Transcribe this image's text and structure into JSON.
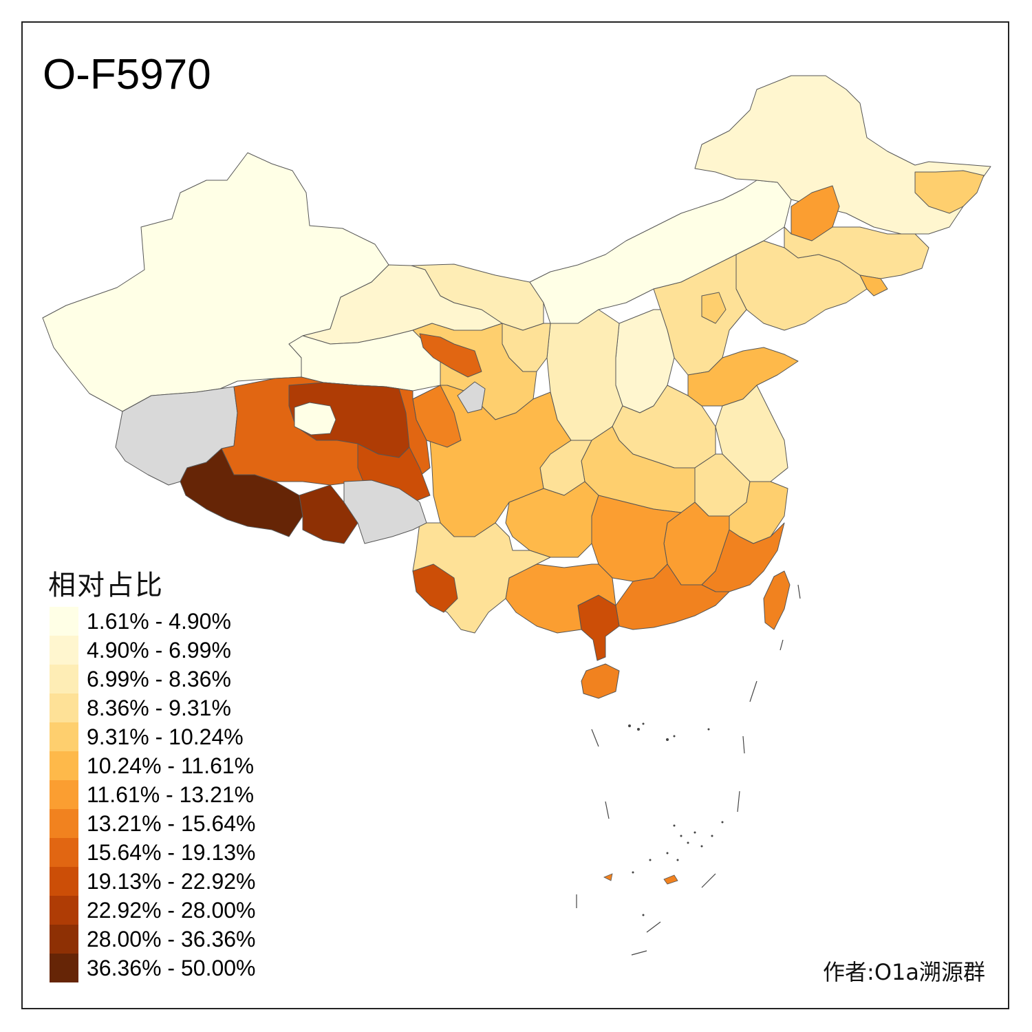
{
  "title": "O-F5970",
  "legend": {
    "title": "相对占比",
    "items": [
      {
        "label": "1.61% - 4.90%",
        "color": "#FFFFE6"
      },
      {
        "label": "4.90% - 6.99%",
        "color": "#FFF6CF"
      },
      {
        "label": "6.99% - 8.36%",
        "color": "#FEEDB5"
      },
      {
        "label": "8.36% - 9.31%",
        "color": "#FEE197"
      },
      {
        "label": "9.31% - 10.24%",
        "color": "#FECF6E"
      },
      {
        "label": "10.24% - 11.61%",
        "color": "#FEB94A"
      },
      {
        "label": "11.61% - 13.21%",
        "color": "#FB9E31"
      },
      {
        "label": "13.21% - 15.64%",
        "color": "#F1821F"
      },
      {
        "label": "15.64% - 19.13%",
        "color": "#E16612"
      },
      {
        "label": "19.13% - 22.92%",
        "color": "#CC4E07"
      },
      {
        "label": "22.92% - 28.00%",
        "color": "#AF3C05"
      },
      {
        "label": "28.00% - 36.36%",
        "color": "#8E3004"
      },
      {
        "label": "36.36% - 50.00%",
        "color": "#662506"
      }
    ]
  },
  "no_data_color": "#D9D9D9",
  "credit": "作者:O1a溯源群"
}
